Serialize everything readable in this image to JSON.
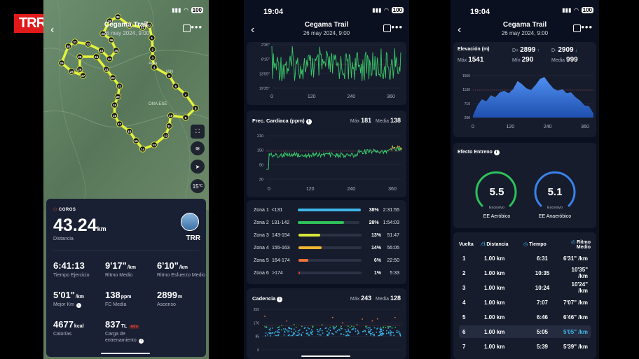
{
  "logo": {
    "text": "TRR"
  },
  "activity": {
    "title": "Cegama Trail",
    "date": "26 may 2024, 9:00"
  },
  "status": {
    "time": "19:04",
    "battery": "100"
  },
  "phone1": {
    "brand": "COROS",
    "distance": "43.24",
    "distance_unit": "km",
    "distance_label": "Distancia",
    "user": "TRR",
    "stats": [
      {
        "value": "6:41:13",
        "unit": "",
        "label": "Tiempo Ejercicio"
      },
      {
        "value": "9'17\"",
        "unit": "/km",
        "label": "Ritmo Medio"
      },
      {
        "value": "6'10\"",
        "unit": "/km",
        "label": "Ritmo Esfuerzo Medio"
      },
      {
        "value": "5'01\"",
        "unit": "/km",
        "label": "Mejor Km"
      },
      {
        "value": "138",
        "unit": "ppm",
        "label": "FC Media"
      },
      {
        "value": "2899",
        "unit": "m",
        "label": "Ascenso"
      },
      {
        "value": "4677",
        "unit": "kcal",
        "label": "Calorías"
      },
      {
        "value": "837",
        "unit": "TL",
        "label": "Carga de entrenamiento",
        "badge": "Alto"
      }
    ],
    "temp": "15",
    "temp_unit": "°C",
    "map_place_labels": [
      "Ama",
      "IAN",
      "ONA ESE"
    ],
    "route_points": [
      [
        "1",
        0.656,
        0.18
      ],
      [
        "2",
        0.66,
        0.235
      ],
      [
        "3",
        0.66,
        0.275
      ],
      [
        "4",
        0.67,
        0.32
      ],
      [
        "5",
        0.76,
        0.36
      ],
      [
        "6",
        0.8,
        0.41
      ],
      [
        "7",
        0.86,
        0.45
      ],
      [
        "8",
        0.92,
        0.515
      ],
      [
        "9",
        0.86,
        0.56
      ],
      [
        "10",
        0.77,
        0.55
      ],
      [
        "11",
        0.76,
        0.6
      ],
      [
        "12",
        0.74,
        0.645
      ],
      [
        "13",
        0.67,
        0.69
      ],
      [
        "14",
        0.6,
        0.71
      ],
      [
        "15",
        0.56,
        0.67
      ],
      [
        "16",
        0.52,
        0.625
      ],
      [
        "17",
        0.46,
        0.59
      ],
      [
        "18",
        0.43,
        0.55
      ],
      [
        "19",
        0.43,
        0.5
      ],
      [
        "20",
        0.45,
        0.46
      ],
      [
        "21",
        0.46,
        0.41
      ],
      [
        "22",
        0.42,
        0.37
      ],
      [
        "23",
        0.38,
        0.33
      ],
      [
        "24",
        0.32,
        0.27
      ],
      [
        "25",
        0.22,
        0.27
      ],
      [
        "26",
        0.22,
        0.33
      ],
      [
        "27",
        0.24,
        0.36
      ],
      [
        "28",
        0.17,
        0.34
      ],
      [
        "29",
        0.11,
        0.3
      ],
      [
        "30",
        0.15,
        0.22
      ],
      [
        "31",
        0.19,
        0.2
      ],
      [
        "32",
        0.27,
        0.21
      ],
      [
        "33",
        0.35,
        0.24
      ],
      [
        "34",
        0.4,
        0.28
      ],
      [
        "35",
        0.44,
        0.24
      ],
      [
        "36",
        0.41,
        0.19
      ],
      [
        "37",
        0.36,
        0.16
      ],
      [
        "38",
        0.4,
        0.1
      ],
      [
        "39",
        0.45,
        0.08
      ],
      [
        "40",
        0.52,
        0.12
      ],
      [
        "41",
        0.6,
        0.13
      ],
      [
        "42",
        0.64,
        0.12
      ]
    ]
  },
  "phone2": {
    "pace": {
      "yticks": [
        "2'35\"",
        "8'15\"",
        "13'55\"",
        "19'35\""
      ],
      "xticks": [
        "0",
        "120",
        "240",
        "360"
      ]
    },
    "hr": {
      "title": "Frec. Cardiaca (ppm)",
      "max_label": "Máx",
      "max": "181",
      "avg_label": "Media",
      "avg": "138",
      "yticks": [
        "210",
        "150",
        "90",
        "30"
      ],
      "xticks": [
        "0",
        "120",
        "240",
        "360"
      ]
    },
    "zones": [
      {
        "name": "Zona 1",
        "range": "<131",
        "pct": "38%",
        "time": "2:31:55",
        "color": "#3fb6ea",
        "fraction": 0.38
      },
      {
        "name": "Zona 2",
        "range": "131-142",
        "pct": "28%",
        "time": "1:54:03",
        "color": "#2fc05a",
        "fraction": 0.28
      },
      {
        "name": "Zona 3",
        "range": "143-154",
        "pct": "13%",
        "time": "51:47",
        "color": "#d8e63a",
        "fraction": 0.13
      },
      {
        "name": "Zona 4",
        "range": "155-163",
        "pct": "14%",
        "time": "55:05",
        "color": "#f0b531",
        "fraction": 0.14
      },
      {
        "name": "Zona 5",
        "range": "164-174",
        "pct": "6%",
        "time": "22:50",
        "color": "#f0713a",
        "fraction": 0.06
      },
      {
        "name": "Zona 6",
        "range": ">174",
        "pct": "1%",
        "time": "5:33",
        "color": "#e43a3a",
        "fraction": 0.01
      }
    ],
    "cad": {
      "title": "Cadencia",
      "max_label": "Máx",
      "max": "243",
      "avg_label": "Media",
      "avg": "128",
      "yticks": [
        "255",
        "170",
        "85",
        "0"
      ]
    }
  },
  "phone3": {
    "elev": {
      "title": "Elevación (m)",
      "dplus_label": "D+",
      "dplus": "2899",
      "dminus_label": "D-",
      "dminus": "2909",
      "max_label": "Máx",
      "max": "1541",
      "min_label": "Mín",
      "min": "290",
      "avg_label": "Media",
      "avg": "999",
      "yticks": [
        "1550",
        "1130",
        "710",
        "290"
      ],
      "xticks": [
        "0",
        "120",
        "240",
        "360"
      ]
    },
    "effect": {
      "title": "Efecto Entreno",
      "aero": "5.5",
      "aero_level": "Excesivo",
      "aero_label": "EE Aeróbico",
      "anaero": "5.1",
      "anaero_level": "Excesivo",
      "anaero_label": "EE Anaeróbico"
    },
    "laps_header": {
      "lap": "Vuelta",
      "dist": "Distancia",
      "time": "Tiempo",
      "pace": "Ritmo Medio"
    },
    "laps": [
      {
        "n": "1",
        "d": "1.00 km",
        "t": "6:31",
        "p": "6'31\" /km"
      },
      {
        "n": "2",
        "d": "1.00 km",
        "t": "10:35",
        "p": "10'35\" /km"
      },
      {
        "n": "3",
        "d": "1.00 km",
        "t": "10:24",
        "p": "10'24\" /km"
      },
      {
        "n": "4",
        "d": "1.00 km",
        "t": "7:07",
        "p": "7'07\" /km"
      },
      {
        "n": "5",
        "d": "1.00 km",
        "t": "6:46",
        "p": "6'46\" /km"
      },
      {
        "n": "6",
        "d": "1.00 km",
        "t": "5:05",
        "p": "5'05\" /km"
      },
      {
        "n": "7",
        "d": "1.00 km",
        "t": "5:39",
        "p": "5'39\" /km"
      }
    ]
  },
  "colors": {
    "accent": "#3fb6ea",
    "hr_line": "#39c86a",
    "elev_fill": "#2f6fd6",
    "route": "#e4f23a"
  }
}
